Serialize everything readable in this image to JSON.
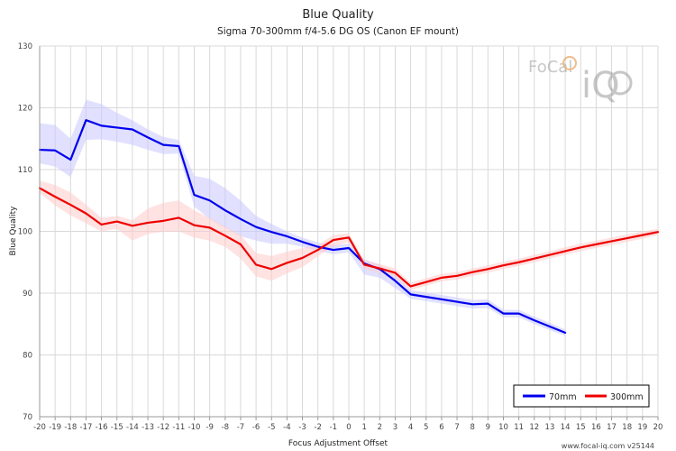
{
  "chart_data": {
    "type": "line",
    "title": "Blue Quality",
    "subtitle": "Sigma 70-300mm f/4-5.6 DG OS (Canon EF mount)",
    "xlabel": "Focus Adjustment Offset",
    "ylabel": "Blue Quality",
    "xlim": [
      -20,
      20
    ],
    "ylim": [
      70,
      130
    ],
    "x_ticks": [
      -20,
      -19,
      -18,
      -17,
      -16,
      -15,
      -14,
      -13,
      -12,
      -11,
      -10,
      -9,
      -8,
      -7,
      -6,
      -5,
      -4,
      -3,
      -2,
      -1,
      0,
      1,
      2,
      3,
      4,
      5,
      6,
      7,
      8,
      9,
      10,
      11,
      12,
      13,
      14,
      15,
      16,
      17,
      18,
      19,
      20
    ],
    "y_ticks": [
      70,
      80,
      90,
      100,
      110,
      120,
      130
    ],
    "grid": true,
    "legend_position": "bottom-right",
    "series": [
      {
        "name": "70mm",
        "color": "#0000ee",
        "band_color": "#c8c8ff",
        "x": [
          -20,
          -19,
          -18,
          -17,
          -16,
          -15,
          -14,
          -13,
          -12,
          -11,
          -10,
          -9,
          -8,
          -7,
          -6,
          -5,
          -4,
          -3,
          -2,
          -1,
          0,
          1,
          2,
          3,
          4,
          5,
          6,
          7,
          8,
          9,
          10,
          11,
          12,
          13,
          14
        ],
        "values": [
          113.2,
          113.1,
          111.6,
          118.0,
          117.1,
          116.8,
          116.5,
          115.2,
          114.0,
          113.8,
          105.9,
          105.0,
          103.4,
          102.0,
          100.7,
          99.9,
          99.2,
          98.3,
          97.5,
          97.0,
          97.3,
          94.8,
          93.9,
          92.0,
          89.8,
          89.4,
          89.0,
          88.6,
          88.2,
          88.3,
          86.7,
          86.7,
          85.6,
          84.6,
          83.6
        ],
        "band_upper": [
          117.5,
          117.2,
          115.0,
          121.3,
          120.6,
          119.2,
          118.0,
          116.5,
          115.3,
          114.8,
          109.0,
          108.5,
          107.0,
          105.0,
          102.5,
          101.2,
          100.0,
          99.0,
          98.2,
          97.8,
          98.0,
          95.5,
          94.6,
          93.0,
          90.5,
          90.1,
          89.7,
          89.3,
          88.9,
          89.0,
          87.3,
          87.3,
          86.2,
          85.2,
          84.1
        ],
        "band_lower": [
          111.0,
          110.5,
          108.8,
          114.8,
          114.9,
          114.5,
          114.0,
          113.2,
          112.5,
          112.6,
          104.0,
          102.0,
          100.6,
          99.2,
          98.5,
          98.0,
          98.0,
          97.5,
          96.8,
          96.3,
          96.6,
          93.0,
          92.5,
          90.8,
          89.1,
          88.7,
          88.3,
          87.9,
          87.5,
          87.6,
          86.1,
          86.1,
          85.0,
          84.0,
          83.1
        ]
      },
      {
        "name": "300mm",
        "color": "#ee0000",
        "band_color": "#ffcaca",
        "x": [
          -20,
          -19,
          -18,
          -17,
          -16,
          -15,
          -14,
          -13,
          -12,
          -11,
          -10,
          -9,
          -8,
          -7,
          -6,
          -5,
          -4,
          -3,
          -2,
          -1,
          0,
          1,
          2,
          3,
          4,
          5,
          6,
          7,
          8,
          9,
          10,
          11,
          12,
          13,
          14,
          15,
          16,
          17,
          18,
          19,
          20
        ],
        "values": [
          107.0,
          105.6,
          104.3,
          102.9,
          101.1,
          101.6,
          100.9,
          101.4,
          101.7,
          102.2,
          101.0,
          100.6,
          99.3,
          97.9,
          94.6,
          93.9,
          94.9,
          95.7,
          97.0,
          98.6,
          99.0,
          94.6,
          94.0,
          93.3,
          91.1,
          91.8,
          92.5,
          92.8,
          93.4,
          93.9,
          94.5,
          95.0,
          95.6,
          96.2,
          96.8,
          97.4,
          97.9,
          98.4,
          98.9,
          99.4,
          99.9
        ],
        "band_upper": [
          108.2,
          107.5,
          106.3,
          104.3,
          102.2,
          102.5,
          101.8,
          103.7,
          104.6,
          105.0,
          103.4,
          102.2,
          100.8,
          99.4,
          96.5,
          96.0,
          96.7,
          97.3,
          97.8,
          99.4,
          99.7,
          95.3,
          94.7,
          94.0,
          91.7,
          92.4,
          93.1,
          93.4,
          94.0,
          94.5,
          95.1,
          95.6,
          96.2,
          96.8,
          97.4,
          98.0,
          98.5,
          99.0,
          99.5,
          100.0,
          100.4
        ],
        "band_lower": [
          106.2,
          104.2,
          102.6,
          101.3,
          100.0,
          100.4,
          98.5,
          99.6,
          99.9,
          100.0,
          99.0,
          98.5,
          97.5,
          95.6,
          92.7,
          92.0,
          93.2,
          94.2,
          96.0,
          97.6,
          98.3,
          93.9,
          93.3,
          92.6,
          90.5,
          91.2,
          91.9,
          92.2,
          92.8,
          93.3,
          93.9,
          94.4,
          95.0,
          95.6,
          96.2,
          96.8,
          97.3,
          97.8,
          98.3,
          98.8,
          99.4
        ]
      }
    ]
  },
  "watermark": {
    "text_top": "FoCal",
    "text_bottom": "iQ"
  },
  "credit": "www.focal-iq.com  v25144"
}
